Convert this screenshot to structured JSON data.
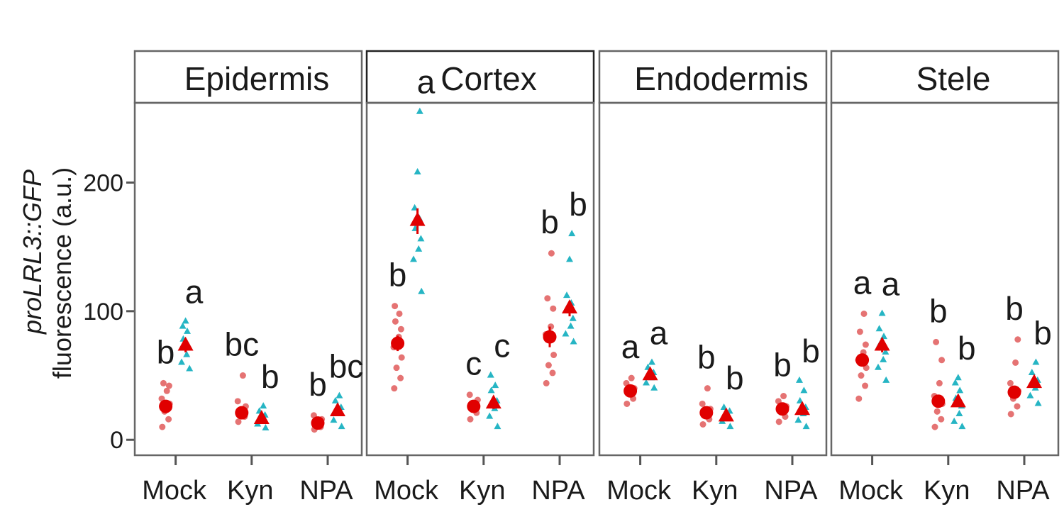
{
  "colors": {
    "series1_points": "#e57373",
    "series1_mean": "#e00000",
    "series2_points": "#26b5c4",
    "series2_mean": "#e00000",
    "axis": "#555555"
  },
  "chart_data": {
    "type": "scatter",
    "ylabel_italic": "proLRL3::GFP",
    "ylabel": "fluorescence (a.u.)",
    "ylim": [
      -12,
      262
    ],
    "yticks": [
      0,
      100,
      200
    ],
    "ytick_labels": [
      "0",
      "100",
      "200"
    ],
    "categories": [
      "Mock",
      "Kyn",
      "NPA"
    ],
    "grid": false,
    "panels": [
      {
        "name": "Epidermis",
        "groups": [
          {
            "category": "Mock",
            "s1": {
              "mean": 26,
              "sem": 4,
              "points": [
                10,
                16,
                22,
                28,
                32,
                38,
                42,
                44
              ],
              "letter": "b"
            },
            "s2": {
              "mean": 73,
              "sem": 5,
              "points": [
                55,
                60,
                66,
                72,
                78,
                84,
                88,
                92
              ],
              "letter": "a"
            }
          },
          {
            "category": "Kyn",
            "s1": {
              "mean": 21,
              "sem": 2,
              "points": [
                14,
                18,
                22,
                26,
                30,
                50
              ],
              "letter": "bc"
            },
            "s2": {
              "mean": 16,
              "sem": 2,
              "points": [
                9,
                12,
                15,
                19,
                22,
                26
              ],
              "letter": "b"
            }
          },
          {
            "category": "NPA",
            "s1": {
              "mean": 13,
              "sem": 2,
              "points": [
                8,
                10,
                13,
                16,
                19
              ],
              "letter": "b"
            },
            "s2": {
              "mean": 22,
              "sem": 3,
              "points": [
                10,
                15,
                20,
                25,
                30,
                34
              ],
              "letter": "bc"
            }
          }
        ]
      },
      {
        "name": "Cortex",
        "groups": [
          {
            "category": "Mock",
            "s1": {
              "mean": 75,
              "sem": 6,
              "points": [
                40,
                48,
                56,
                64,
                72,
                80,
                86,
                92,
                98,
                104
              ],
              "letter": "b"
            },
            "s2": {
              "mean": 170,
              "sem": 10,
              "points": [
                115,
                140,
                148,
                156,
                164,
                172,
                180,
                208,
                255
              ],
              "letter": "a"
            }
          },
          {
            "category": "Kyn",
            "s1": {
              "mean": 26,
              "sem": 3,
              "points": [
                16,
                21,
                26,
                31,
                35
              ],
              "letter": "c"
            },
            "s2": {
              "mean": 28,
              "sem": 4,
              "points": [
                10,
                18,
                24,
                30,
                38,
                42,
                50
              ],
              "letter": "c"
            }
          },
          {
            "category": "NPA",
            "s1": {
              "mean": 80,
              "sem": 8,
              "points": [
                44,
                52,
                58,
                66,
                82,
                88,
                102,
                110,
                145
              ],
              "letter": "b"
            },
            "s2": {
              "mean": 102,
              "sem": 6,
              "points": [
                76,
                82,
                88,
                94,
                100,
                106,
                112,
                140,
                160
              ],
              "letter": "b"
            }
          }
        ]
      },
      {
        "name": "Endodermis",
        "groups": [
          {
            "category": "Mock",
            "s1": {
              "mean": 38,
              "sem": 3,
              "points": [
                28,
                32,
                36,
                40,
                44,
                48
              ],
              "letter": "a"
            },
            "s2": {
              "mean": 50,
              "sem": 3,
              "points": [
                40,
                44,
                48,
                52,
                56,
                60
              ],
              "letter": "a"
            }
          },
          {
            "category": "Kyn",
            "s1": {
              "mean": 21,
              "sem": 2,
              "points": [
                12,
                16,
                20,
                24,
                28,
                40
              ],
              "letter": "b"
            },
            "s2": {
              "mean": 18,
              "sem": 2,
              "points": [
                10,
                14,
                18,
                22,
                25
              ],
              "letter": "b"
            }
          },
          {
            "category": "NPA",
            "s1": {
              "mean": 24,
              "sem": 2,
              "points": [
                14,
                18,
                22,
                26,
                30,
                34
              ],
              "letter": "b"
            },
            "s2": {
              "mean": 23,
              "sem": 3,
              "points": [
                10,
                15,
                20,
                25,
                30,
                38,
                46
              ],
              "letter": "b"
            }
          }
        ]
      },
      {
        "name": "Stele",
        "groups": [
          {
            "category": "Mock",
            "s1": {
              "mean": 62,
              "sem": 5,
              "points": [
                32,
                42,
                50,
                56,
                62,
                68,
                74,
                84,
                98
              ],
              "letter": "a"
            },
            "s2": {
              "mean": 73,
              "sem": 5,
              "points": [
                46,
                56,
                62,
                68,
                74,
                80,
                86,
                98
              ],
              "letter": "a"
            }
          },
          {
            "category": "Kyn",
            "s1": {
              "mean": 30,
              "sem": 4,
              "points": [
                10,
                16,
                22,
                28,
                34,
                44,
                62,
                76
              ],
              "letter": "b"
            },
            "s2": {
              "mean": 29,
              "sem": 3,
              "points": [
                10,
                14,
                20,
                26,
                32,
                38,
                44,
                48
              ],
              "letter": "b"
            }
          },
          {
            "category": "NPA",
            "s1": {
              "mean": 37,
              "sem": 3,
              "points": [
                20,
                26,
                32,
                38,
                44,
                60,
                78
              ],
              "letter": "b"
            },
            "s2": {
              "mean": 44,
              "sem": 3,
              "points": [
                28,
                34,
                40,
                46,
                52,
                60
              ],
              "letter": "b"
            }
          }
        ]
      }
    ]
  }
}
